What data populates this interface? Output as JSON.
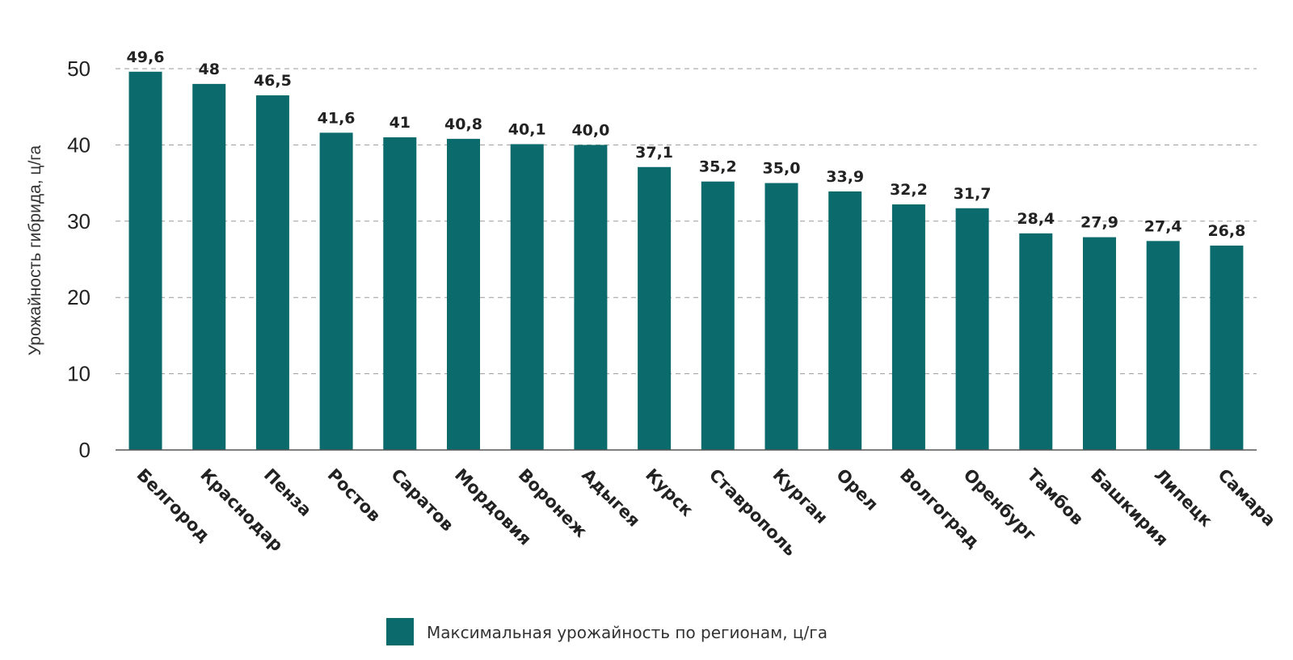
{
  "chart_data": {
    "type": "bar",
    "categories": [
      "Белгород",
      "Краснодар",
      "Пенза",
      "Ростов",
      "Саратов",
      "Мордовия",
      "Воронеж",
      "Адыгея",
      "Курск",
      "Ставрополь",
      "Курган",
      "Орел",
      "Волгоград",
      "Оренбург",
      "Тамбов",
      "Башкирия",
      "Липецк",
      "Самара"
    ],
    "series": [
      {
        "name": "Максимальная урожайность по регионам, ц/га",
        "values": [
          49.6,
          48,
          46.5,
          41.6,
          41,
          40.8,
          40.1,
          40.0,
          37.1,
          35.2,
          35.0,
          33.9,
          32.2,
          31.7,
          28.4,
          27.9,
          27.4,
          26.8
        ],
        "value_labels": [
          "49,6",
          "48",
          "46,5",
          "41,6",
          "41",
          "40,8",
          "40,1",
          "40,0",
          "37,1",
          "35,2",
          "35,0",
          "33,9",
          "32,2",
          "31,7",
          "28,4",
          "27,9",
          "27,4",
          "26,8"
        ],
        "color": "#0b6a6b"
      }
    ],
    "title": "",
    "xlabel": "",
    "ylabel": "Урожайность гибрида, ц/га",
    "ylim": [
      0,
      50
    ],
    "yticks": [
      0,
      10,
      20,
      30,
      40,
      50
    ],
    "grid": true,
    "legend_position": "bottom-center"
  }
}
